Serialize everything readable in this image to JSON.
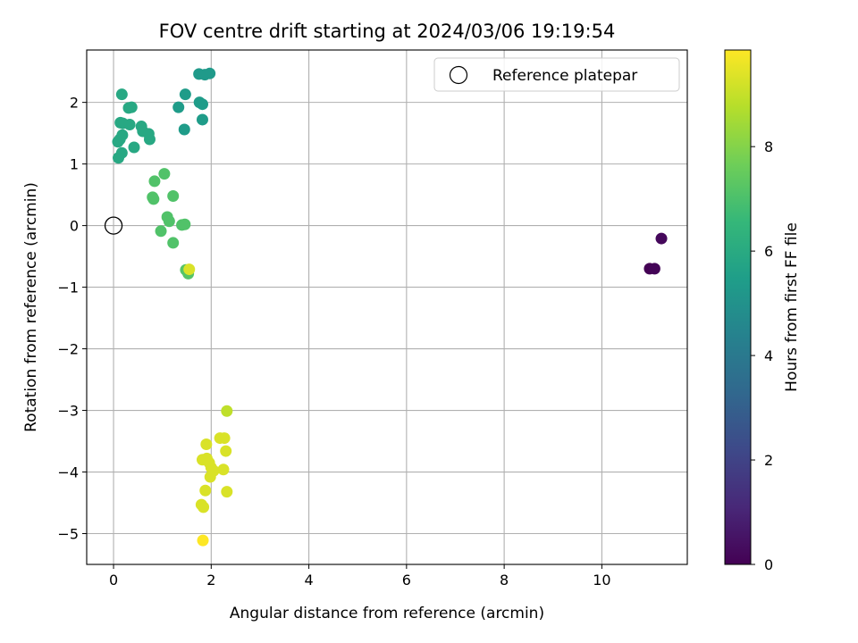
{
  "chart_data": {
    "type": "scatter",
    "title": "FOV centre drift starting at 2024/03/06 19:19:54",
    "xlabel": "Angular distance from reference (arcmin)",
    "ylabel": "Rotation from reference (arcmin)",
    "xlim": [
      -0.55,
      11.75
    ],
    "ylim": [
      -5.5,
      2.85
    ],
    "xticks": [
      0,
      2,
      4,
      6,
      8,
      10
    ],
    "xtick_labels": [
      "0",
      "2",
      "4",
      "6",
      "8",
      "10"
    ],
    "yticks": [
      -5,
      -4,
      -3,
      -2,
      -1,
      0,
      1,
      2
    ],
    "ytick_labels": [
      "−5",
      "−4",
      "−3",
      "−2",
      "−1",
      "0",
      "1",
      "2"
    ],
    "grid": true,
    "legend": {
      "position": "top-right",
      "entries": [
        {
          "label": "Reference platepar",
          "marker": "open-circle"
        }
      ]
    },
    "reference_point": {
      "x": 0,
      "y": 0
    },
    "colorbar": {
      "label": "Hours from first FF file",
      "colormap": "viridis",
      "range": [
        0,
        9.85
      ],
      "ticks": [
        0,
        2,
        4,
        6,
        8
      ],
      "tick_labels": [
        "0",
        "2",
        "4",
        "6",
        "8"
      ]
    },
    "points": [
      {
        "x": 10.98,
        "y": -0.7,
        "c": 0.0
      },
      {
        "x": 11.08,
        "y": -0.7,
        "c": 0.1
      },
      {
        "x": 11.22,
        "y": -0.21,
        "c": 0.2
      },
      {
        "x": 1.75,
        "y": 2.46,
        "c": 5.3
      },
      {
        "x": 1.87,
        "y": 2.45,
        "c": 5.3
      },
      {
        "x": 1.97,
        "y": 2.47,
        "c": 5.3
      },
      {
        "x": 1.47,
        "y": 2.13,
        "c": 5.4
      },
      {
        "x": 1.33,
        "y": 1.92,
        "c": 5.4
      },
      {
        "x": 1.76,
        "y": 2.0,
        "c": 5.4
      },
      {
        "x": 1.82,
        "y": 1.97,
        "c": 5.4
      },
      {
        "x": 1.82,
        "y": 1.72,
        "c": 5.4
      },
      {
        "x": 1.45,
        "y": 1.56,
        "c": 5.4
      },
      {
        "x": 0.17,
        "y": 2.13,
        "c": 5.9
      },
      {
        "x": 0.31,
        "y": 1.91,
        "c": 5.9
      },
      {
        "x": 0.37,
        "y": 1.92,
        "c": 5.9
      },
      {
        "x": 0.14,
        "y": 1.67,
        "c": 5.9
      },
      {
        "x": 0.19,
        "y": 1.66,
        "c": 5.9
      },
      {
        "x": 0.33,
        "y": 1.64,
        "c": 5.9
      },
      {
        "x": 0.57,
        "y": 1.61,
        "c": 5.9
      },
      {
        "x": 0.6,
        "y": 1.53,
        "c": 5.9
      },
      {
        "x": 0.72,
        "y": 1.49,
        "c": 5.9
      },
      {
        "x": 0.74,
        "y": 1.4,
        "c": 5.9
      },
      {
        "x": 0.18,
        "y": 1.47,
        "c": 5.9
      },
      {
        "x": 0.13,
        "y": 1.4,
        "c": 5.9
      },
      {
        "x": 0.09,
        "y": 1.36,
        "c": 5.9
      },
      {
        "x": 0.42,
        "y": 1.27,
        "c": 5.9
      },
      {
        "x": 0.17,
        "y": 1.18,
        "c": 5.9
      },
      {
        "x": 0.1,
        "y": 1.1,
        "c": 5.9
      },
      {
        "x": 1.04,
        "y": 0.84,
        "c": 7.1
      },
      {
        "x": 0.84,
        "y": 0.72,
        "c": 7.1
      },
      {
        "x": 0.8,
        "y": 0.46,
        "c": 7.1
      },
      {
        "x": 0.82,
        "y": 0.43,
        "c": 7.1
      },
      {
        "x": 1.22,
        "y": 0.48,
        "c": 7.1
      },
      {
        "x": 1.1,
        "y": 0.14,
        "c": 7.1
      },
      {
        "x": 1.14,
        "y": 0.07,
        "c": 7.1
      },
      {
        "x": 1.4,
        "y": 0.01,
        "c": 7.1
      },
      {
        "x": 1.46,
        "y": 0.02,
        "c": 7.1
      },
      {
        "x": 0.97,
        "y": -0.09,
        "c": 7.1
      },
      {
        "x": 1.22,
        "y": -0.28,
        "c": 7.1
      },
      {
        "x": 1.48,
        "y": -0.72,
        "c": 7.2
      },
      {
        "x": 1.53,
        "y": -0.78,
        "c": 7.2
      },
      {
        "x": 1.55,
        "y": -0.71,
        "c": 9.3
      },
      {
        "x": 2.32,
        "y": -3.01,
        "c": 8.9
      },
      {
        "x": 2.18,
        "y": -3.45,
        "c": 9.3
      },
      {
        "x": 2.27,
        "y": -3.45,
        "c": 9.3
      },
      {
        "x": 1.9,
        "y": -3.55,
        "c": 9.3
      },
      {
        "x": 2.3,
        "y": -3.66,
        "c": 9.3
      },
      {
        "x": 1.82,
        "y": -3.8,
        "c": 9.3
      },
      {
        "x": 1.91,
        "y": -3.78,
        "c": 9.3
      },
      {
        "x": 1.96,
        "y": -3.85,
        "c": 9.3
      },
      {
        "x": 2.0,
        "y": -3.93,
        "c": 9.3
      },
      {
        "x": 2.05,
        "y": -3.98,
        "c": 9.3
      },
      {
        "x": 2.25,
        "y": -3.96,
        "c": 9.3
      },
      {
        "x": 1.98,
        "y": -4.08,
        "c": 9.3
      },
      {
        "x": 1.88,
        "y": -4.3,
        "c": 9.3
      },
      {
        "x": 2.32,
        "y": -4.32,
        "c": 9.3
      },
      {
        "x": 1.8,
        "y": -4.53,
        "c": 9.3
      },
      {
        "x": 1.84,
        "y": -4.57,
        "c": 9.3
      },
      {
        "x": 1.83,
        "y": -5.11,
        "c": 9.85
      }
    ]
  }
}
